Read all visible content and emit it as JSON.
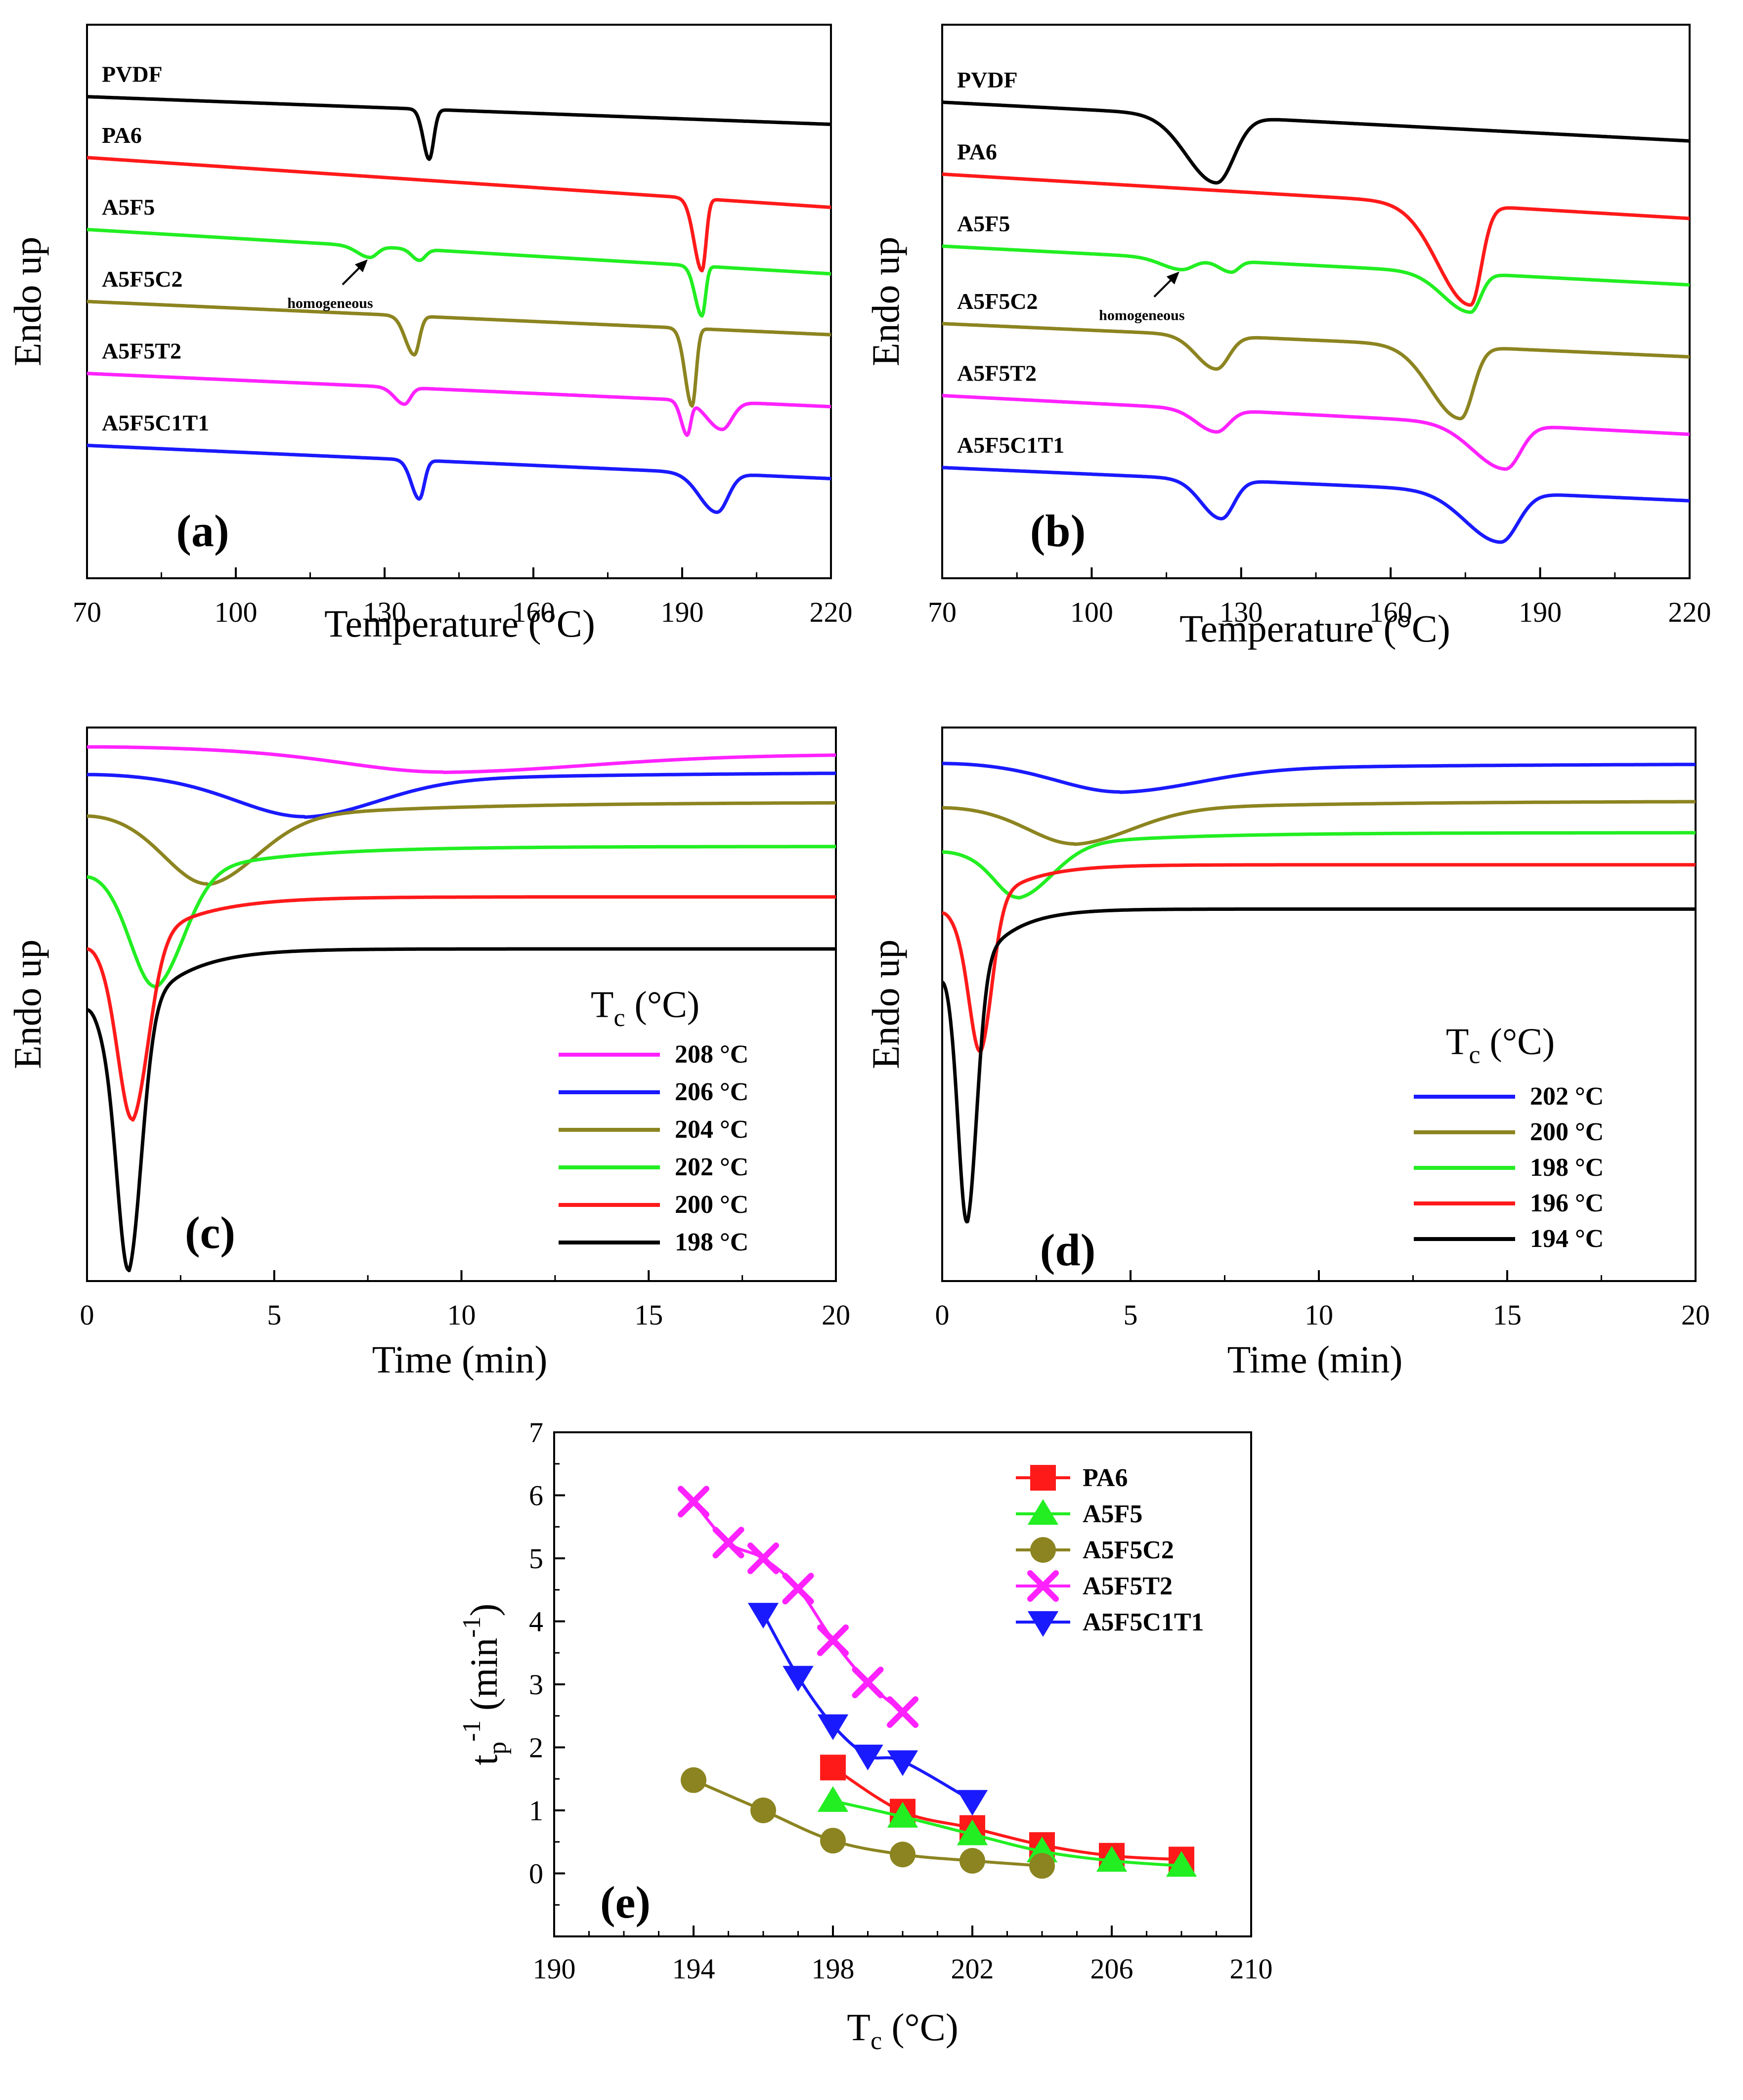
{
  "chart_data": [
    {
      "id": "a",
      "type": "line",
      "panel_label": "(a)",
      "xlabel": "Temperature (°C)",
      "ylabel": "Endo up",
      "xlim": [
        70,
        220
      ],
      "xticks": [
        "70",
        "100",
        "130",
        "160",
        "190",
        "220"
      ],
      "annotation": "homogeneous",
      "series": [
        {
          "name": "PVDF",
          "color": "#000000",
          "base": [
            0.87,
            0.82
          ],
          "peaks": [
            {
              "x": 139,
              "depth": 0.09,
              "left": 1.2,
              "right": 0.9
            }
          ]
        },
        {
          "name": "PA6",
          "color": "#ff1a1a",
          "base": [
            0.76,
            0.67
          ],
          "peaks": [
            {
              "x": 194,
              "depth": 0.13,
              "left": 1.6,
              "right": 0.8
            }
          ]
        },
        {
          "name": "A5F5",
          "color": "#22ee22",
          "base": [
            0.63,
            0.55
          ],
          "peaks": [
            {
              "x": 127,
              "depth": 0.02,
              "left": 2.5,
              "right": 1.5
            },
            {
              "x": 137,
              "depth": 0.02,
              "left": 1.5,
              "right": 1.2
            },
            {
              "x": 194,
              "depth": 0.09,
              "left": 1.4,
              "right": 0.7
            }
          ]
        },
        {
          "name": "A5F5C2",
          "color": "#8c8420",
          "base": [
            0.5,
            0.44
          ],
          "peaks": [
            {
              "x": 136,
              "depth": 0.07,
              "left": 1.8,
              "right": 1.0
            },
            {
              "x": 192,
              "depth": 0.14,
              "left": 1.4,
              "right": 0.8
            }
          ]
        },
        {
          "name": "A5F5T2",
          "color": "#ff22ff",
          "base": [
            0.37,
            0.31
          ],
          "peaks": [
            {
              "x": 134,
              "depth": 0.03,
              "left": 2.0,
              "right": 1.2
            },
            {
              "x": 191,
              "depth": 0.06,
              "left": 1.2,
              "right": 0.7
            },
            {
              "x": 198,
              "depth": 0.05,
              "left": 3.0,
              "right": 2.0
            }
          ]
        },
        {
          "name": "A5F5C1T1",
          "color": "#1a1aff",
          "base": [
            0.24,
            0.18
          ],
          "peaks": [
            {
              "x": 137,
              "depth": 0.07,
              "left": 1.6,
              "right": 1.0
            },
            {
              "x": 197,
              "depth": 0.07,
              "left": 3.5,
              "right": 2.2
            }
          ]
        }
      ]
    },
    {
      "id": "b",
      "type": "line",
      "panel_label": "(b)",
      "xlabel": "Temperature (°C)",
      "ylabel": "Endo up",
      "xlim": [
        70,
        220
      ],
      "xticks": [
        "70",
        "100",
        "130",
        "160",
        "190",
        "220"
      ],
      "annotation": "homogeneous",
      "series": [
        {
          "name": "PVDF",
          "color": "#000000",
          "base": [
            0.86,
            0.79
          ],
          "peaks": [
            {
              "x": 125,
              "depth": 0.12,
              "left": 6.0,
              "right": 3.5
            }
          ]
        },
        {
          "name": "PA6",
          "color": "#ff1a1a",
          "base": [
            0.73,
            0.65
          ],
          "peaks": [
            {
              "x": 176,
              "depth": 0.18,
              "left": 6.5,
              "right": 2.2
            }
          ]
        },
        {
          "name": "A5F5",
          "color": "#22ee22",
          "base": [
            0.6,
            0.53
          ],
          "peaks": [
            {
              "x": 118,
              "depth": 0.02,
              "left": 4.0,
              "right": 2.5
            },
            {
              "x": 128,
              "depth": 0.02,
              "left": 2.5,
              "right": 1.5
            },
            {
              "x": 176,
              "depth": 0.07,
              "left": 5.5,
              "right": 2.0
            }
          ]
        },
        {
          "name": "A5F5C2",
          "color": "#8c8420",
          "base": [
            0.46,
            0.4
          ],
          "peaks": [
            {
              "x": 125,
              "depth": 0.06,
              "left": 4.0,
              "right": 2.5
            },
            {
              "x": 174,
              "depth": 0.13,
              "left": 6.0,
              "right": 2.5
            }
          ]
        },
        {
          "name": "A5F5T2",
          "color": "#ff22ff",
          "base": [
            0.33,
            0.26
          ],
          "peaks": [
            {
              "x": 125,
              "depth": 0.04,
              "left": 4.0,
              "right": 2.5
            },
            {
              "x": 183,
              "depth": 0.08,
              "left": 6.5,
              "right": 3.0
            }
          ]
        },
        {
          "name": "A5F5C1T1",
          "color": "#1a1aff",
          "base": [
            0.2,
            0.14
          ],
          "peaks": [
            {
              "x": 126,
              "depth": 0.07,
              "left": 4.0,
              "right": 2.5
            },
            {
              "x": 182,
              "depth": 0.09,
              "left": 7.0,
              "right": 3.5
            }
          ]
        }
      ]
    },
    {
      "id": "c",
      "type": "line",
      "panel_label": "(c)",
      "xlabel": "Time (min)",
      "ylabel": "Endo up",
      "xlim": [
        0,
        20
      ],
      "xticks": [
        "0",
        "5",
        "10",
        "15",
        "20"
      ],
      "legend_title": "T",
      "legend_title_sub": "c",
      "legend_title_unit": " (°C)",
      "series": [
        {
          "name": "208 °C",
          "color": "#ff22ff",
          "plateau": 0.955,
          "start": 0.965,
          "tmin": 9.5,
          "depth": 0.036,
          "wl": 3.5,
          "wr": 5.5
        },
        {
          "name": "206 °C",
          "color": "#1a1aff",
          "plateau": 0.92,
          "start": 0.915,
          "tmin": 5.8,
          "depth": 0.082,
          "wl": 2.4,
          "wr": 2.8
        },
        {
          "name": "204 °C",
          "color": "#8c8420",
          "plateau": 0.865,
          "start": 0.84,
          "tmin": 3.2,
          "depth": 0.149,
          "wl": 1.5,
          "wr": 1.9
        },
        {
          "name": "202 °C",
          "color": "#22ee22",
          "plateau": 0.785,
          "start": 0.73,
          "tmin": 1.8,
          "depth": 0.255,
          "wl": 0.85,
          "wr": 1.1
        },
        {
          "name": "200 °C",
          "color": "#ff1a1a",
          "plateau": 0.694,
          "start": 0.6,
          "tmin": 1.2,
          "depth": 0.405,
          "wl": 0.5,
          "wr": 0.62
        },
        {
          "name": "198 °C",
          "color": "#000000",
          "plateau": 0.6,
          "start": 0.49,
          "tmin": 1.1,
          "depth": 0.585,
          "wl": 0.4,
          "wr": 0.5
        }
      ]
    },
    {
      "id": "d",
      "type": "line",
      "panel_label": "(d)",
      "xlabel": "Time (min)",
      "ylabel": "Endo up",
      "xlim": [
        0,
        20
      ],
      "xticks": [
        "0",
        "5",
        "10",
        "15",
        "20"
      ],
      "legend_title": "T",
      "legend_title_sub": "c",
      "legend_title_unit": " (°C)",
      "series": [
        {
          "name": "202 °C",
          "color": "#1a1aff",
          "plateau": 0.935,
          "start": 0.935,
          "tmin": 4.7,
          "depth": 0.052,
          "wl": 2.2,
          "wr": 3.0
        },
        {
          "name": "200 °C",
          "color": "#8c8420",
          "plateau": 0.867,
          "start": 0.855,
          "tmin": 3.5,
          "depth": 0.078,
          "wl": 1.6,
          "wr": 2.2
        },
        {
          "name": "198 °C",
          "color": "#22ee22",
          "plateau": 0.81,
          "start": 0.775,
          "tmin": 2.0,
          "depth": 0.118,
          "wl": 0.8,
          "wr": 1.3
        },
        {
          "name": "196 °C",
          "color": "#ff1a1a",
          "plateau": 0.752,
          "start": 0.665,
          "tmin": 1.0,
          "depth": 0.34,
          "wl": 0.38,
          "wr": 0.45
        },
        {
          "name": "194 °C",
          "color": "#000000",
          "plateau": 0.672,
          "start": 0.54,
          "tmin": 0.65,
          "depth": 0.57,
          "wl": 0.3,
          "wr": 0.38
        }
      ]
    },
    {
      "id": "e",
      "type": "line",
      "panel_label": "(e)",
      "xlabel": "T",
      "xlabel_sub": "c",
      "xlabel_unit": " (°C)",
      "ylabel": "t",
      "ylabel_sub": "p",
      "ylabel_sup": "-1",
      "ylabel_unit": " (min",
      "ylabel_unit_sup": "-1",
      "ylabel_end": ")",
      "xlim": [
        190,
        210
      ],
      "ylim": [
        -1,
        7
      ],
      "xticks": [
        "190",
        "194",
        "198",
        "202",
        "206",
        "210"
      ],
      "yticks": [
        "0",
        "1",
        "2",
        "3",
        "4",
        "5",
        "6",
        "7"
      ],
      "series": [
        {
          "name": "PA6",
          "color": "#ff1a1a",
          "marker": "square",
          "x": [
            198,
            200,
            202,
            204,
            206,
            208
          ],
          "y": [
            1.68,
            0.98,
            0.72,
            0.45,
            0.28,
            0.22
          ]
        },
        {
          "name": "A5F5",
          "color": "#22ee22",
          "marker": "triangle-up",
          "x": [
            198,
            200,
            202,
            204,
            206,
            208
          ],
          "y": [
            1.15,
            0.9,
            0.62,
            0.35,
            0.2,
            0.12
          ]
        },
        {
          "name": "A5F5C2",
          "color": "#8c8420",
          "marker": "circle",
          "x": [
            194,
            196,
            198,
            200,
            202,
            204
          ],
          "y": [
            1.48,
            1.0,
            0.52,
            0.3,
            0.2,
            0.12
          ]
        },
        {
          "name": "A5F5T2",
          "color": "#ff22ff",
          "marker": "x",
          "x": [
            194,
            195,
            196,
            197,
            198,
            199,
            200
          ],
          "y": [
            5.9,
            5.25,
            5.0,
            4.52,
            3.7,
            3.03,
            2.56
          ]
        },
        {
          "name": "A5F5C1T1",
          "color": "#1a1aff",
          "marker": "triangle-down",
          "x": [
            196,
            197,
            198,
            199,
            200,
            202
          ],
          "y": [
            4.12,
            3.12,
            2.35,
            1.87,
            1.78,
            1.15
          ]
        }
      ]
    }
  ]
}
